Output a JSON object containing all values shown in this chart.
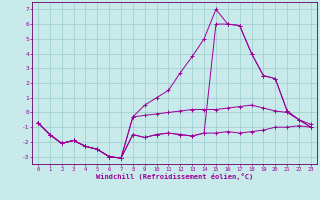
{
  "xlabel": "Windchill (Refroidissement éolien,°C)",
  "bg_color": "#c8eaea",
  "line_color": "#990099",
  "grid_color": "#99cccc",
  "xlim": [
    -0.5,
    23.5
  ],
  "ylim": [
    -3.5,
    7.5
  ],
  "yticks": [
    -3,
    -2,
    -1,
    0,
    1,
    2,
    3,
    4,
    5,
    6,
    7
  ],
  "xticks": [
    0,
    1,
    2,
    3,
    4,
    5,
    6,
    7,
    8,
    9,
    10,
    11,
    12,
    13,
    14,
    15,
    16,
    17,
    18,
    19,
    20,
    21,
    22,
    23
  ],
  "line1_x": [
    0,
    1,
    2,
    3,
    4,
    5,
    6,
    7,
    8,
    9,
    10,
    11,
    12,
    13,
    14,
    15,
    16,
    17,
    18,
    19,
    20,
    21,
    22,
    23
  ],
  "line1_y": [
    -0.7,
    -1.5,
    -2.1,
    -1.9,
    -2.3,
    -2.5,
    -3.0,
    -3.1,
    -1.5,
    -1.7,
    -1.5,
    -1.4,
    -1.5,
    -1.6,
    -1.4,
    -1.4,
    -1.3,
    -1.4,
    -1.3,
    -1.2,
    -1.0,
    -1.0,
    -0.9,
    -1.0
  ],
  "line2_x": [
    0,
    1,
    2,
    3,
    4,
    5,
    6,
    7,
    8,
    9,
    10,
    11,
    12,
    13,
    14,
    15,
    16,
    17,
    18,
    19,
    20,
    21,
    22,
    23
  ],
  "line2_y": [
    -0.7,
    -1.5,
    -2.1,
    -1.9,
    -2.3,
    -2.5,
    -3.0,
    -3.1,
    -1.5,
    -1.7,
    -1.5,
    -1.4,
    -1.5,
    -1.6,
    -1.4,
    6.0,
    6.0,
    5.9,
    4.0,
    2.5,
    2.3,
    0.1,
    -0.5,
    -1.0
  ],
  "line3_x": [
    0,
    1,
    2,
    3,
    4,
    5,
    6,
    7,
    8,
    9,
    10,
    11,
    12,
    13,
    14,
    15,
    16,
    17,
    18,
    19,
    20,
    21,
    22,
    23
  ],
  "line3_y": [
    -0.7,
    -1.5,
    -2.1,
    -1.9,
    -2.3,
    -2.5,
    -3.0,
    -3.1,
    -0.3,
    0.5,
    1.0,
    1.5,
    2.7,
    3.8,
    5.0,
    7.0,
    6.0,
    5.9,
    4.0,
    2.5,
    2.3,
    0.1,
    -0.5,
    -1.0
  ],
  "line4_x": [
    0,
    1,
    2,
    3,
    4,
    5,
    6,
    7,
    8,
    9,
    10,
    11,
    12,
    13,
    14,
    15,
    16,
    17,
    18,
    19,
    20,
    21,
    22,
    23
  ],
  "line4_y": [
    -0.7,
    -1.5,
    -2.1,
    -1.9,
    -2.3,
    -2.5,
    -3.0,
    -3.1,
    -0.3,
    -0.2,
    -0.1,
    0.0,
    0.1,
    0.2,
    0.2,
    0.2,
    0.3,
    0.4,
    0.5,
    0.3,
    0.1,
    0.0,
    -0.5,
    -0.8
  ]
}
